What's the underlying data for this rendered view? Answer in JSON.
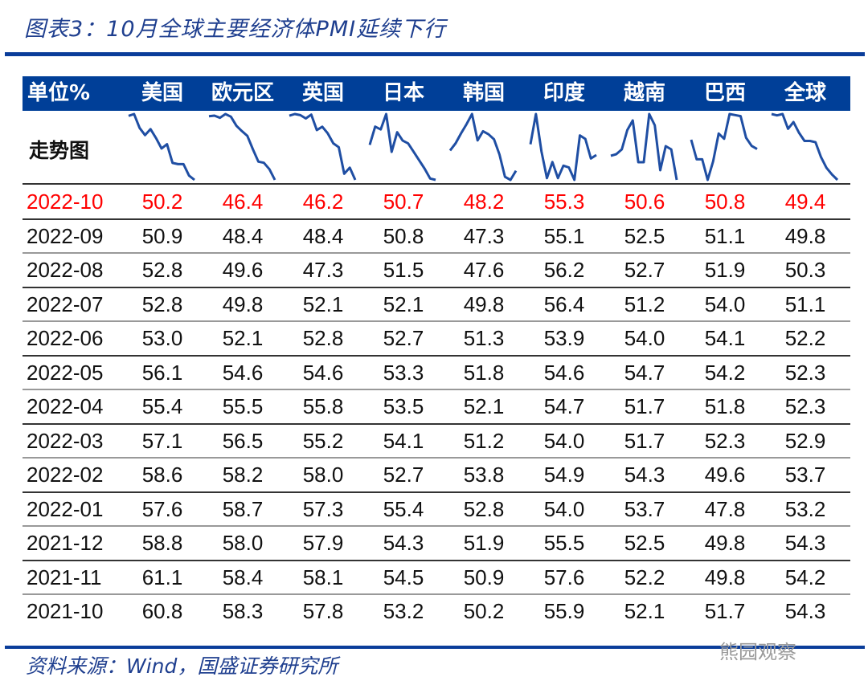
{
  "title": "图表3：10月全球主要经济体PMI延续下行",
  "source": "资料来源：Wind，国盛证券研究所",
  "watermark": "熊园观察",
  "colors": {
    "header_bg": "#003f98",
    "sparkline": "#1f4ea3",
    "highlight": "#ff0000",
    "text": "#111111"
  },
  "chart_data": {
    "type": "table",
    "unit_label": "单位%",
    "sparkline_label": "走势图",
    "columns": [
      "美国",
      "欧元区",
      "英国",
      "日本",
      "韩国",
      "印度",
      "越南",
      "巴西",
      "全球"
    ],
    "highlight_row": "2022-10",
    "rows": [
      {
        "date": "2022-10",
        "values": [
          "50.2",
          "46.4",
          "46.2",
          "50.7",
          "48.2",
          "55.3",
          "50.6",
          "50.8",
          "49.4"
        ]
      },
      {
        "date": "2022-09",
        "values": [
          "50.9",
          "48.4",
          "48.4",
          "50.8",
          "47.3",
          "55.1",
          "52.5",
          "51.1",
          "49.8"
        ]
      },
      {
        "date": "2022-08",
        "values": [
          "52.8",
          "49.6",
          "47.3",
          "51.5",
          "47.6",
          "56.2",
          "52.7",
          "51.9",
          "50.3"
        ]
      },
      {
        "date": "2022-07",
        "values": [
          "52.8",
          "49.8",
          "52.1",
          "52.1",
          "49.8",
          "56.4",
          "51.2",
          "54.0",
          "51.1"
        ]
      },
      {
        "date": "2022-06",
        "values": [
          "53.0",
          "52.1",
          "52.8",
          "52.7",
          "51.3",
          "53.9",
          "54.0",
          "54.1",
          "52.2"
        ]
      },
      {
        "date": "2022-05",
        "values": [
          "56.1",
          "54.6",
          "54.6",
          "53.3",
          "51.8",
          "54.6",
          "54.7",
          "54.2",
          "52.3"
        ]
      },
      {
        "date": "2022-04",
        "values": [
          "55.4",
          "55.5",
          "55.8",
          "53.5",
          "52.1",
          "54.7",
          "51.7",
          "51.8",
          "52.3"
        ]
      },
      {
        "date": "2022-03",
        "values": [
          "57.1",
          "56.5",
          "55.2",
          "54.1",
          "51.2",
          "54.0",
          "51.7",
          "52.3",
          "52.9"
        ]
      },
      {
        "date": "2022-02",
        "values": [
          "58.6",
          "58.2",
          "58.0",
          "52.7",
          "53.8",
          "54.9",
          "54.3",
          "49.6",
          "53.7"
        ]
      },
      {
        "date": "2022-01",
        "values": [
          "57.6",
          "58.7",
          "57.3",
          "55.4",
          "52.8",
          "54.0",
          "53.7",
          "47.8",
          "53.2"
        ]
      },
      {
        "date": "2021-12",
        "values": [
          "58.8",
          "58.0",
          "57.9",
          "54.3",
          "51.9",
          "55.5",
          "52.5",
          "49.8",
          "54.3"
        ]
      },
      {
        "date": "2021-11",
        "values": [
          "61.1",
          "58.4",
          "58.1",
          "54.5",
          "50.9",
          "57.6",
          "52.2",
          "49.8",
          "54.2"
        ]
      },
      {
        "date": "2021-10",
        "values": [
          "60.8",
          "58.3",
          "57.8",
          "53.2",
          "50.2",
          "55.9",
          "52.1",
          "51.7",
          "54.3"
        ]
      }
    ]
  }
}
